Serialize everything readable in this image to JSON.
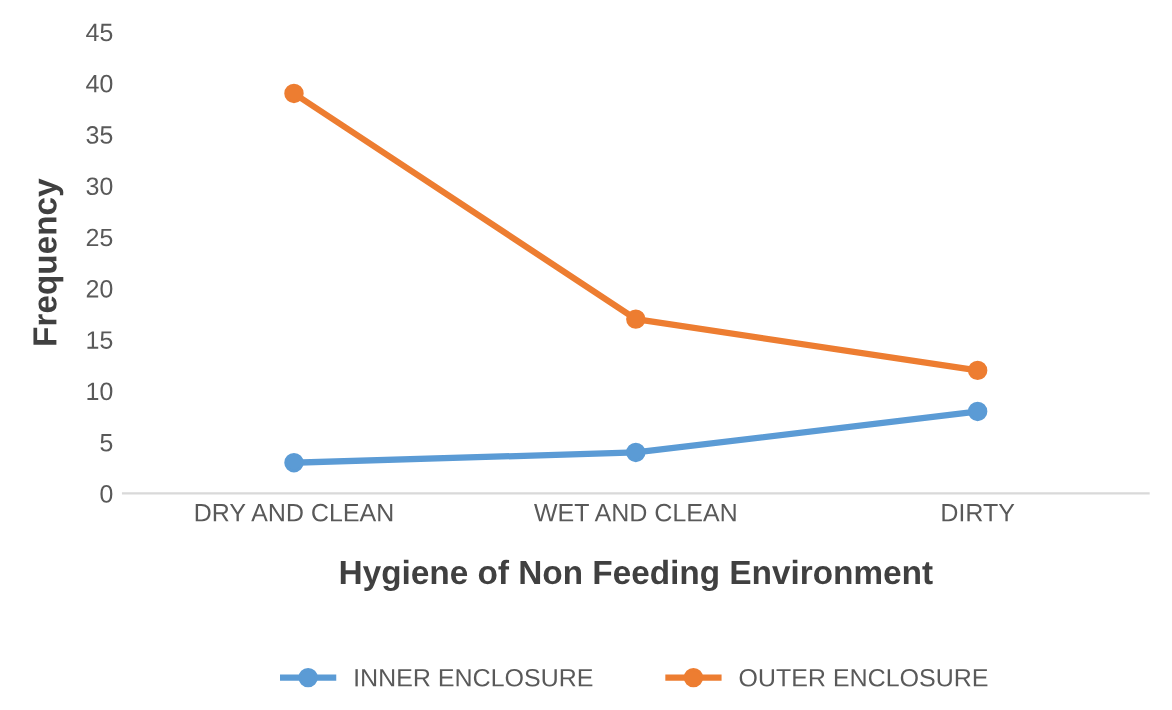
{
  "chart_data": {
    "type": "line",
    "xlabel": "Hygiene of Non Feeding Environment",
    "ylabel": "Frequency",
    "categories": [
      "DRY AND CLEAN",
      "WET AND CLEAN",
      "DIRTY"
    ],
    "series": [
      {
        "name": "INNER ENCLOSURE",
        "color": "#5b9bd5",
        "values": [
          3,
          4,
          8
        ]
      },
      {
        "name": "OUTER ENCLOSURE",
        "color": "#ed7d31",
        "values": [
          39,
          17,
          12
        ]
      }
    ],
    "ylim": [
      0,
      45
    ],
    "yticks": [
      0,
      5,
      10,
      15,
      20,
      25,
      30,
      35,
      40,
      45
    ],
    "grid": false,
    "legend": "bottom",
    "marker": "circle",
    "line_style": "solid"
  }
}
